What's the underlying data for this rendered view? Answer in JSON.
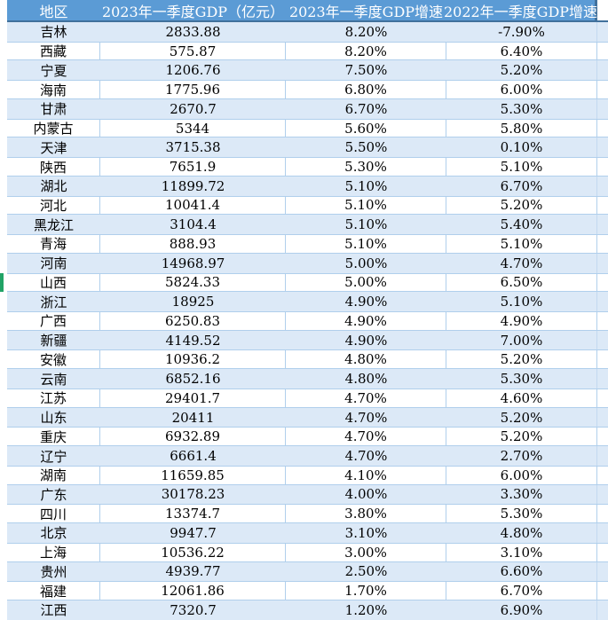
{
  "chart_data": {
    "type": "table",
    "columns": [
      "地区",
      "2023年一季度GDP（亿元）",
      "2023年一季度GDP增速",
      "2022年一季度GDP增速"
    ],
    "rows": [
      [
        "吉林",
        "2833.88",
        "8.20%",
        "-7.90%"
      ],
      [
        "西藏",
        "575.87",
        "8.20%",
        "6.40%"
      ],
      [
        "宁夏",
        "1206.76",
        "7.50%",
        "5.20%"
      ],
      [
        "海南",
        "1775.96",
        "6.80%",
        "6.00%"
      ],
      [
        "甘肃",
        "2670.7",
        "6.70%",
        "5.30%"
      ],
      [
        "内蒙古",
        "5344",
        "5.60%",
        "5.80%"
      ],
      [
        "天津",
        "3715.38",
        "5.50%",
        "0.10%"
      ],
      [
        "陕西",
        "7651.9",
        "5.30%",
        "5.10%"
      ],
      [
        "湖北",
        "11899.72",
        "5.10%",
        "6.70%"
      ],
      [
        "河北",
        "10041.4",
        "5.10%",
        "5.20%"
      ],
      [
        "黑龙江",
        "3104.4",
        "5.10%",
        "5.40%"
      ],
      [
        "青海",
        "888.93",
        "5.10%",
        "5.10%"
      ],
      [
        "河南",
        "14968.97",
        "5.00%",
        "4.70%"
      ],
      [
        "山西",
        "5824.33",
        "5.00%",
        "6.50%"
      ],
      [
        "浙江",
        "18925",
        "4.90%",
        "5.10%"
      ],
      [
        "广西",
        "6250.83",
        "4.90%",
        "4.90%"
      ],
      [
        "新疆",
        "4149.52",
        "4.90%",
        "7.00%"
      ],
      [
        "安徽",
        "10936.2",
        "4.80%",
        "5.20%"
      ],
      [
        "云南",
        "6852.16",
        "4.80%",
        "5.30%"
      ],
      [
        "江苏",
        "29401.7",
        "4.70%",
        "4.60%"
      ],
      [
        "山东",
        "20411",
        "4.70%",
        "5.20%"
      ],
      [
        "重庆",
        "6932.89",
        "4.70%",
        "5.20%"
      ],
      [
        "辽宁",
        "6661.4",
        "4.70%",
        "2.70%"
      ],
      [
        "湖南",
        "11659.85",
        "4.10%",
        "6.00%"
      ],
      [
        "广东",
        "30178.23",
        "4.00%",
        "3.30%"
      ],
      [
        "四川",
        "13374.7",
        "3.80%",
        "5.30%"
      ],
      [
        "北京",
        "9947.7",
        "3.10%",
        "4.80%"
      ],
      [
        "上海",
        "10536.22",
        "3.00%",
        "3.10%"
      ],
      [
        "贵州",
        "4939.77",
        "2.50%",
        "6.60%"
      ],
      [
        "福建",
        "12061.86",
        "1.70%",
        "6.70%"
      ],
      [
        "江西",
        "7320.7",
        "1.20%",
        "6.90%"
      ]
    ],
    "layout": {
      "banding": "alternating",
      "band_colors": [
        "#dce9f7",
        "#ffffff"
      ],
      "grid": "light-blue"
    }
  },
  "selection": {
    "selected_row_region": "山西",
    "marker_color": "#21a366"
  },
  "colors": {
    "header_bg": "#5b9bd5",
    "header_text": "#ffffff",
    "header_border": "#41719c",
    "band_blue": "#dce9f7",
    "band_white": "#ffffff",
    "gridline": "#b0cfec",
    "body_text": "#000000"
  }
}
